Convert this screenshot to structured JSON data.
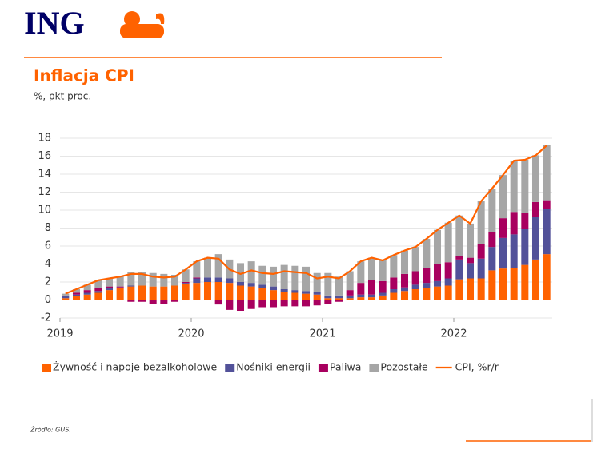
{
  "logo": "ING",
  "chart_data": {
    "type": "bar",
    "stacked": true,
    "title": "Inflacja CPI",
    "subtitle": "%, pkt proc.",
    "source": "Źródło: GUS.",
    "categories": [
      "2019",
      null,
      null,
      null,
      null,
      null,
      null,
      null,
      null,
      null,
      null,
      null,
      "2020",
      null,
      null,
      null,
      null,
      null,
      null,
      null,
      null,
      null,
      null,
      null,
      "2021",
      null,
      null,
      null,
      null,
      null,
      null,
      null,
      null,
      null,
      null,
      null,
      "2022",
      null,
      null,
      null,
      null,
      null,
      null,
      null,
      null
    ],
    "ylim": [
      -2,
      18
    ],
    "yticks": [
      -2,
      0,
      2,
      4,
      6,
      8,
      10,
      12,
      14,
      16,
      18
    ],
    "grid": true,
    "series": [
      {
        "name": "Żywność i napoje bezalkoholowe",
        "color": "#ff6200",
        "values": [
          0.2,
          0.4,
          0.6,
          0.8,
          1.1,
          1.3,
          1.5,
          1.6,
          1.5,
          1.5,
          1.6,
          1.8,
          1.9,
          2.0,
          2.0,
          1.9,
          1.6,
          1.5,
          1.3,
          1.1,
          0.9,
          0.8,
          0.7,
          0.6,
          0.2,
          0.2,
          0.2,
          0.3,
          0.3,
          0.5,
          0.8,
          1.0,
          1.2,
          1.3,
          1.5,
          1.6,
          2.3,
          2.4,
          2.4,
          3.3,
          3.5,
          3.6,
          3.9,
          4.5,
          5.1
        ]
      },
      {
        "name": "Nośniki energii",
        "color": "#525199",
        "values": [
          0.2,
          0.2,
          0.2,
          0.2,
          0.2,
          0.1,
          0.1,
          0,
          0,
          0,
          0,
          0.1,
          0.5,
          0.5,
          0.5,
          0.5,
          0.4,
          0.4,
          0.4,
          0.4,
          0.3,
          0.3,
          0.3,
          0.3,
          0.3,
          0.3,
          0.3,
          0.3,
          0.3,
          0.3,
          0.4,
          0.4,
          0.5,
          0.6,
          0.6,
          0.8,
          2.2,
          1.7,
          2.2,
          2.6,
          3.4,
          3.7,
          4.0,
          4.7,
          5.0
        ]
      },
      {
        "name": "Paliwa",
        "color": "#a8005f",
        "values": [
          0.1,
          0.2,
          0.3,
          0.3,
          0.2,
          0.1,
          -0.2,
          -0.2,
          -0.4,
          -0.4,
          -0.2,
          0.1,
          0.1,
          0.0,
          -0.5,
          -1.1,
          -1.2,
          -1.0,
          -0.8,
          -0.8,
          -0.7,
          -0.7,
          -0.7,
          -0.6,
          -0.4,
          -0.2,
          0.6,
          1.3,
          1.6,
          1.3,
          1.3,
          1.5,
          1.5,
          1.7,
          1.9,
          1.8,
          0.4,
          0.6,
          1.6,
          1.7,
          2.2,
          2.5,
          1.8,
          1.7,
          1.0
        ]
      },
      {
        "name": "Pozostałe",
        "color": "#a6a6a6",
        "values": [
          0.2,
          0.4,
          0.6,
          0.9,
          0.9,
          1.1,
          1.5,
          1.5,
          1.5,
          1.4,
          1.2,
          1.4,
          1.8,
          2.2,
          2.6,
          2.1,
          2.1,
          2.4,
          2.1,
          2.2,
          2.7,
          2.7,
          2.7,
          2.1,
          2.5,
          2.1,
          2.1,
          2.4,
          2.5,
          2.3,
          2.5,
          2.6,
          2.7,
          3.2,
          3.8,
          4.4,
          4.5,
          3.8,
          4.8,
          4.8,
          4.8,
          5.7,
          5.9,
          5.2,
          6.1
        ]
      },
      {
        "name": "CPI, %r/r",
        "color": "#ff6200",
        "type": "line",
        "values": [
          0.7,
          1.2,
          1.7,
          2.2,
          2.4,
          2.6,
          2.9,
          2.9,
          2.6,
          2.5,
          2.6,
          3.4,
          4.3,
          4.7,
          4.6,
          3.4,
          2.9,
          3.3,
          3.0,
          2.9,
          3.2,
          3.1,
          3.0,
          2.4,
          2.6,
          2.4,
          3.2,
          4.3,
          4.7,
          4.4,
          5.0,
          5.5,
          5.9,
          6.8,
          7.8,
          8.6,
          9.4,
          8.5,
          11.0,
          12.4,
          13.9,
          15.5,
          15.6,
          16.1,
          17.2
        ]
      }
    ]
  }
}
